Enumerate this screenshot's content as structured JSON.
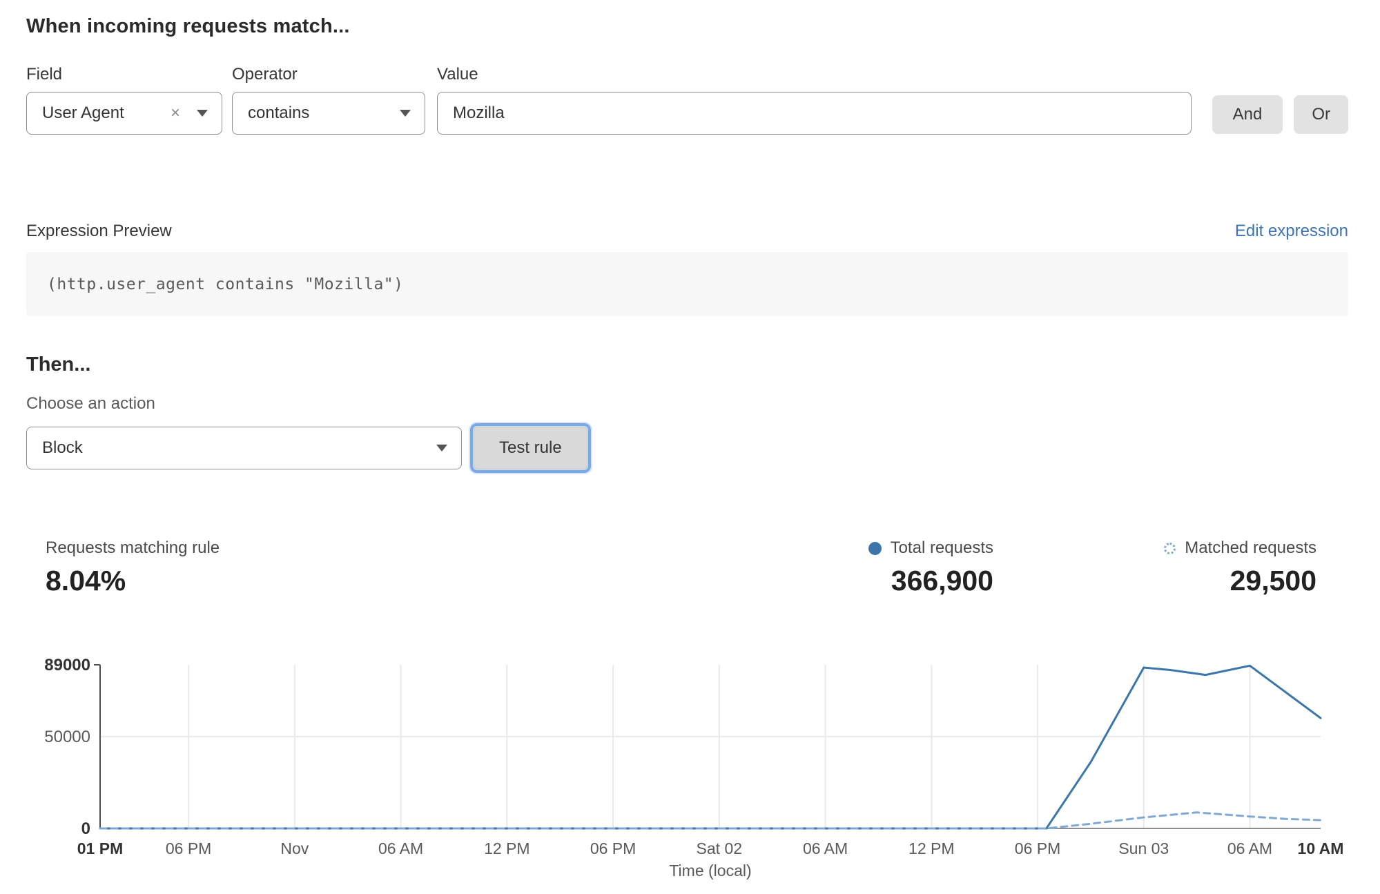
{
  "colors": {
    "link_blue": "#3e74b5",
    "series_total": "#3b76ab",
    "series_matched": "#7fa9d2",
    "button_gray": "#e2e2e2"
  },
  "header": {
    "title": "When incoming requests match..."
  },
  "rule_builder": {
    "field": {
      "label": "Field",
      "value": "User Agent"
    },
    "operator": {
      "label": "Operator",
      "value": "contains"
    },
    "value": {
      "label": "Value",
      "value": "Mozilla"
    },
    "and_label": "And",
    "or_label": "Or",
    "clear_glyph": "×"
  },
  "expression": {
    "label": "Expression Preview",
    "edit_link": "Edit expression",
    "code": "(http.user_agent contains \"Mozilla\")"
  },
  "then_section": {
    "title": "Then...",
    "action_label": "Choose an action",
    "action_value": "Block",
    "test_button": "Test rule"
  },
  "stats": {
    "matching": {
      "label": "Requests matching rule",
      "value": "8.04%"
    },
    "total": {
      "label": "Total requests",
      "value": "366,900"
    },
    "matched": {
      "label": "Matched requests",
      "value": "29,500"
    }
  },
  "chart_data": {
    "type": "line",
    "title": "",
    "xlabel": "Time (local)",
    "ylabel": "",
    "ylim": [
      0,
      89000
    ],
    "x_span_hours": 69,
    "grid": true,
    "legend_position": "above-right",
    "y_ticks": [
      {
        "value": 0,
        "label": "0",
        "bold": true
      },
      {
        "value": 50000,
        "label": "50000",
        "bold": false
      },
      {
        "value": 89000,
        "label": "89000",
        "bold": true
      }
    ],
    "x_ticks": [
      {
        "h": 0,
        "label": "01 PM",
        "bold": true
      },
      {
        "h": 5,
        "label": "06 PM",
        "bold": false
      },
      {
        "h": 11,
        "label": "Nov",
        "bold": false
      },
      {
        "h": 17,
        "label": "06 AM",
        "bold": false
      },
      {
        "h": 23,
        "label": "12 PM",
        "bold": false
      },
      {
        "h": 29,
        "label": "06 PM",
        "bold": false
      },
      {
        "h": 35,
        "label": "Sat 02",
        "bold": false
      },
      {
        "h": 41,
        "label": "06 AM",
        "bold": false
      },
      {
        "h": 47,
        "label": "12 PM",
        "bold": false
      },
      {
        "h": 53,
        "label": "06 PM",
        "bold": false
      },
      {
        "h": 59,
        "label": "Sun 03",
        "bold": false
      },
      {
        "h": 65,
        "label": "06 AM",
        "bold": false
      },
      {
        "h": 69,
        "label": "10 AM",
        "bold": true
      }
    ],
    "series": [
      {
        "name": "Total requests",
        "style": "solid",
        "color": "#3b76ab",
        "points": [
          [
            0,
            0
          ],
          [
            5,
            0
          ],
          [
            11,
            0
          ],
          [
            17,
            0
          ],
          [
            23,
            0
          ],
          [
            29,
            0
          ],
          [
            35,
            0
          ],
          [
            41,
            0
          ],
          [
            47,
            0
          ],
          [
            53,
            0
          ],
          [
            53.5,
            0
          ],
          [
            56,
            36000
          ],
          [
            59,
            87500
          ],
          [
            60.5,
            86200
          ],
          [
            62.5,
            83500
          ],
          [
            65,
            88500
          ],
          [
            69,
            60000
          ]
        ]
      },
      {
        "name": "Matched requests",
        "style": "dashed",
        "color": "#7fa9d2",
        "points": [
          [
            0,
            0
          ],
          [
            5,
            0
          ],
          [
            11,
            0
          ],
          [
            17,
            0
          ],
          [
            23,
            0
          ],
          [
            29,
            0
          ],
          [
            35,
            0
          ],
          [
            41,
            0
          ],
          [
            47,
            0
          ],
          [
            53,
            0
          ],
          [
            53.5,
            0
          ],
          [
            56,
            2500
          ],
          [
            59,
            6000
          ],
          [
            62,
            8700
          ],
          [
            65,
            6500
          ],
          [
            67,
            5200
          ],
          [
            69,
            4500
          ]
        ]
      }
    ]
  }
}
